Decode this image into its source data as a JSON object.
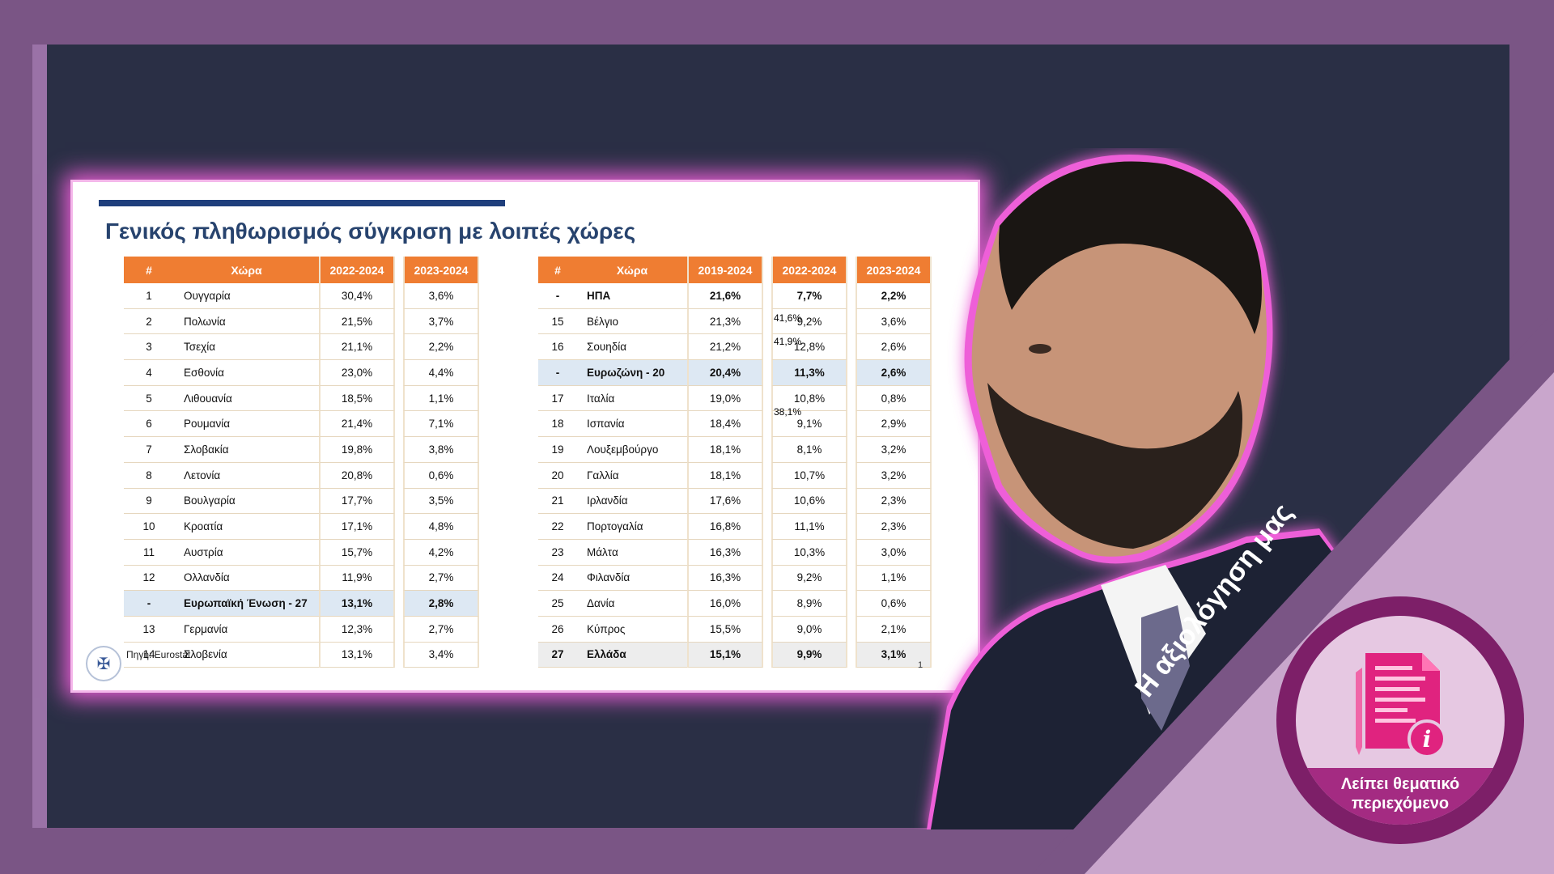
{
  "slide": {
    "title": "Γενικός πληθωρισμός σύγκριση με λοιπές χώρες",
    "source": "Πηγή: Eurostat",
    "page": "1"
  },
  "left_table": {
    "headers": [
      "#",
      "Χώρα",
      "2022-2024",
      "2023-2024"
    ],
    "rows": [
      [
        "1",
        "Ουγγαρία",
        "30,4%",
        "3,6%"
      ],
      [
        "2",
        "Πολωνία",
        "21,5%",
        "3,7%"
      ],
      [
        "3",
        "Τσεχία",
        "21,1%",
        "2,2%"
      ],
      [
        "4",
        "Εσθονία",
        "23,0%",
        "4,4%"
      ],
      [
        "5",
        "Λιθουανία",
        "18,5%",
        "1,1%"
      ],
      [
        "6",
        "Ρουμανία",
        "21,4%",
        "7,1%"
      ],
      [
        "7",
        "Σλοβακία",
        "19,8%",
        "3,8%"
      ],
      [
        "8",
        "Λετονία",
        "20,8%",
        "0,6%"
      ],
      [
        "9",
        "Βουλγαρία",
        "17,7%",
        "3,5%"
      ],
      [
        "10",
        "Κροατία",
        "17,1%",
        "4,8%"
      ],
      [
        "11",
        "Αυστρία",
        "15,7%",
        "4,2%"
      ],
      [
        "12",
        "Ολλανδία",
        "11,9%",
        "2,7%"
      ],
      [
        "-",
        "Ευρωπαϊκή Ένωση - 27",
        "13,1%",
        "2,8%"
      ],
      [
        "13",
        "Γερμανία",
        "12,3%",
        "2,7%"
      ],
      [
        "14",
        "Σλοβενία",
        "13,1%",
        "3,4%"
      ]
    ]
  },
  "right_table": {
    "headers": [
      "#",
      "Χώρα",
      "2019-2024",
      "2022-2024",
      "2023-2024"
    ],
    "rows": [
      [
        "-",
        "ΗΠΑ",
        "21,6%",
        "7,7%",
        "2,2%"
      ],
      [
        "15",
        "Βέλγιο",
        "21,3%",
        "9,2%",
        "3,6%"
      ],
      [
        "16",
        "Σουηδία",
        "21,2%",
        "12,8%",
        "2,6%"
      ],
      [
        "-",
        "Ευρωζώνη - 20",
        "20,4%",
        "11,3%",
        "2,6%"
      ],
      [
        "17",
        "Ιταλία",
        "19,0%",
        "10,8%",
        "0,8%"
      ],
      [
        "18",
        "Ισπανία",
        "18,4%",
        "9,1%",
        "2,9%"
      ],
      [
        "19",
        "Λουξεμβούργο",
        "18,1%",
        "8,1%",
        "3,2%"
      ],
      [
        "20",
        "Γαλλία",
        "18,1%",
        "10,7%",
        "3,2%"
      ],
      [
        "21",
        "Ιρλανδία",
        "17,6%",
        "10,6%",
        "2,3%"
      ],
      [
        "22",
        "Πορτογαλία",
        "16,8%",
        "11,1%",
        "2,3%"
      ],
      [
        "23",
        "Μάλτα",
        "16,3%",
        "10,3%",
        "3,0%"
      ],
      [
        "24",
        "Φιλανδία",
        "16,3%",
        "9,2%",
        "1,1%"
      ],
      [
        "25",
        "Δανία",
        "16,0%",
        "8,9%",
        "0,6%"
      ],
      [
        "26",
        "Κύπρος",
        "15,5%",
        "9,0%",
        "2,1%"
      ],
      [
        "27",
        "Ελλάδα",
        "15,1%",
        "9,9%",
        "3,1%"
      ]
    ],
    "overlay_numbers": [
      "41,6%",
      "41,9%",
      "38,1%"
    ]
  },
  "rating": {
    "label": "Η αξιολόγηση μας",
    "verdict_line1": "Λείπει θεματικό",
    "verdict_line2": "περιεχόμενο",
    "verdict_icon": "document-info-icon"
  },
  "colors": {
    "header_orange": "#ef7d32",
    "highlight_blue": "#dde8f3",
    "frame_purple": "#7a5585",
    "badge_magenta": "#a42b82"
  }
}
